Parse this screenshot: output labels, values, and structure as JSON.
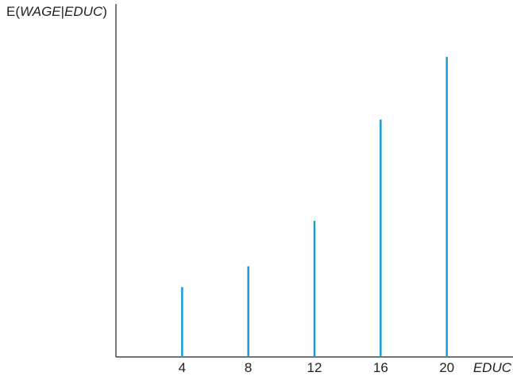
{
  "chart_data": {
    "type": "bar",
    "title": "",
    "ylabel_parts": [
      "E(",
      "WAGE",
      "|",
      "EDUC",
      ")"
    ],
    "xlabel": "EDUC",
    "x": [
      4,
      8,
      12,
      16,
      20
    ],
    "tick_labels": [
      "4",
      "8",
      "12",
      "16",
      "20"
    ],
    "values": [
      0.2,
      0.26,
      0.39,
      0.68,
      0.86
    ],
    "xlim": [
      0,
      24
    ],
    "ylim": [
      0,
      1
    ],
    "grid": false,
    "bar_color": "#1a9bd7",
    "axis_color": "#222222"
  }
}
